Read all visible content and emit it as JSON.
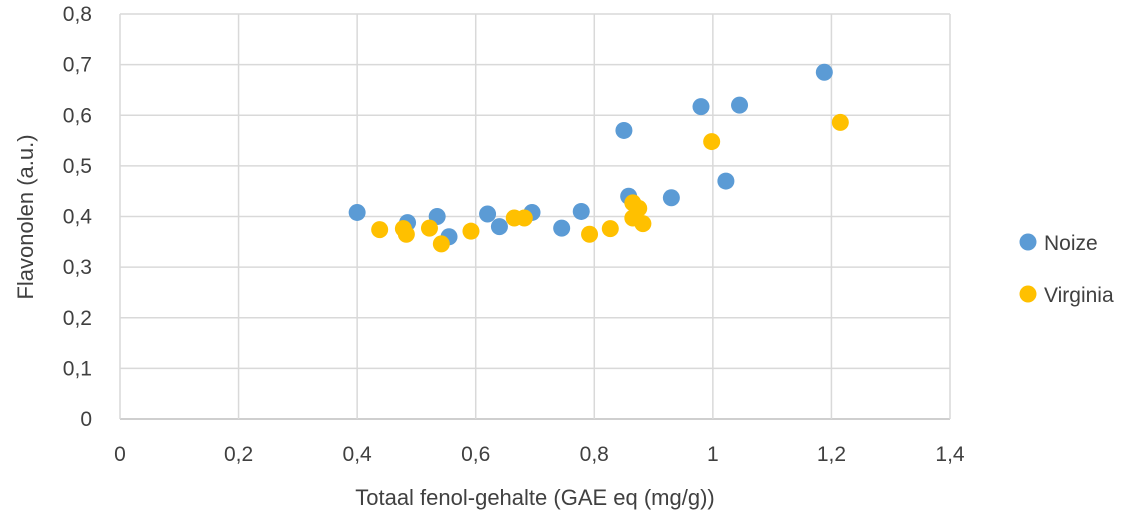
{
  "chart_data": {
    "type": "scatter",
    "xlabel": "Totaal fenol-gehalte (GAE eq (mg/g))",
    "ylabel": "Flavonolen (a.u.)",
    "xlim": [
      0,
      1.4
    ],
    "ylim": [
      0,
      0.8
    ],
    "x_ticks": [
      "0",
      "0,2",
      "0,4",
      "0,6",
      "0,8",
      "1",
      "1,2",
      "1,4"
    ],
    "y_ticks": [
      "0",
      "0,1",
      "0,2",
      "0,3",
      "0,4",
      "0,5",
      "0,6",
      "0,7",
      "0,8"
    ],
    "grid": true,
    "legend_position": "right",
    "series": [
      {
        "name": "Noize",
        "color": "#5B9BD5",
        "points": [
          [
            0.4,
            0.408
          ],
          [
            0.485,
            0.388
          ],
          [
            0.535,
            0.4
          ],
          [
            0.555,
            0.36
          ],
          [
            0.62,
            0.405
          ],
          [
            0.64,
            0.38
          ],
          [
            0.695,
            0.408
          ],
          [
            0.745,
            0.377
          ],
          [
            0.778,
            0.41
          ],
          [
            0.85,
            0.57
          ],
          [
            0.858,
            0.44
          ],
          [
            0.93,
            0.437
          ],
          [
            0.98,
            0.617
          ],
          [
            1.022,
            0.47
          ],
          [
            1.045,
            0.62
          ],
          [
            1.188,
            0.685
          ]
        ]
      },
      {
        "name": "Virginia",
        "color": "#FFC000",
        "points": [
          [
            0.438,
            0.374
          ],
          [
            0.478,
            0.376
          ],
          [
            0.483,
            0.365
          ],
          [
            0.522,
            0.377
          ],
          [
            0.542,
            0.346
          ],
          [
            0.592,
            0.371
          ],
          [
            0.665,
            0.397
          ],
          [
            0.682,
            0.397
          ],
          [
            0.792,
            0.365
          ],
          [
            0.827,
            0.376
          ],
          [
            0.865,
            0.427
          ],
          [
            0.865,
            0.397
          ],
          [
            0.875,
            0.416
          ],
          [
            0.882,
            0.386
          ],
          [
            0.998,
            0.548
          ],
          [
            1.215,
            0.586
          ]
        ]
      }
    ]
  }
}
